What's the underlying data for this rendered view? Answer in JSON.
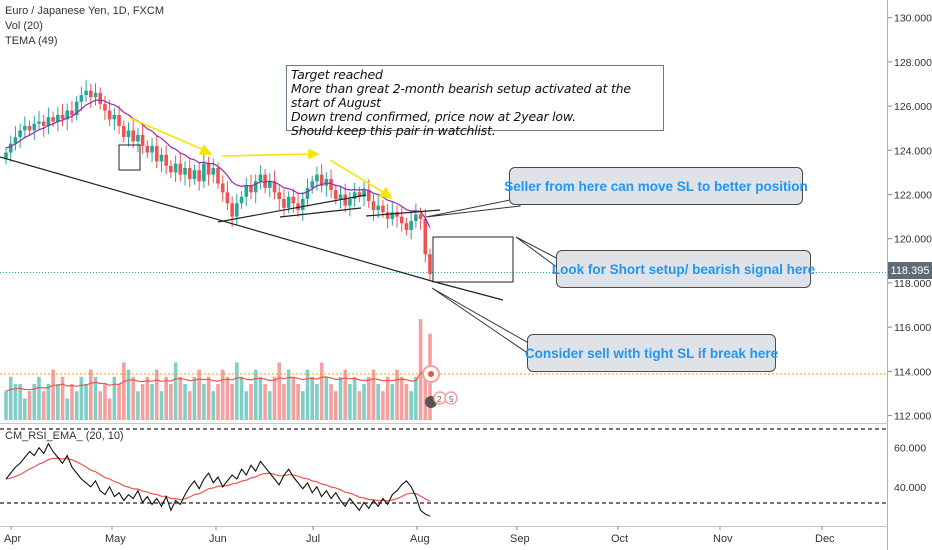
{
  "header": {
    "symbol_line": "Euro / Japanese Yen, 1D, FXCM",
    "volume_legend": "Vol (20)",
    "tema_legend": "TEMA (49)"
  },
  "rsi_panel": {
    "title": "CM_RSI_EMA_ (20, 10)",
    "ticks": [
      "60.000",
      "40.000"
    ]
  },
  "note": {
    "lines": [
      "Target reached",
      "More than great 2-month bearish setup activated at the start of August",
      "Down trend confirmed, price now at 2year low.",
      "Should keep this pair in watchlist."
    ]
  },
  "callouts": {
    "seller": "Seller from here can move SL to better position",
    "short": "Look for Short setup/ bearish signal here",
    "sell": "Consider sell with tight SL if break here"
  },
  "price_tag": "118.395",
  "price_axis_ticks": [
    "130.000",
    "128.000",
    "126.000",
    "124.000",
    "122.000",
    "120.000",
    "118.000",
    "116.000",
    "114.000",
    "112.000"
  ],
  "icons": {
    "marker_digits": "2",
    "marker_digits2": "5"
  },
  "colors": {
    "up": "#26a69a",
    "down": "#ef5350",
    "vol_up": "#7fcfc7",
    "vol_down": "#f4a09e",
    "tema": "#9c27b0",
    "arrow": "#ffeb3b",
    "rsi_line": "#000000",
    "rsi_ema": "#ef5350"
  },
  "chart_data": {
    "type": "candlestick",
    "x_axis": {
      "labels": [
        "Apr",
        "May",
        "Jun",
        "Jul",
        "Aug",
        "Sep",
        "Oct",
        "Nov",
        "Dec"
      ]
    },
    "y_axis": {
      "range": [
        111.8,
        130.8
      ],
      "ticks": [
        112,
        114,
        116,
        118,
        120,
        122,
        124,
        126,
        128,
        130
      ]
    },
    "last_price": 118.395,
    "closes": [
      123.9,
      124.3,
      124.6,
      124.9,
      125.1,
      124.9,
      125.2,
      125.3,
      125.1,
      125.5,
      125.3,
      125.6,
      125.4,
      125.8,
      125.6,
      126.2,
      126.5,
      126.7,
      126.4,
      126.6,
      126.1,
      125.8,
      125.4,
      125.6,
      125.1,
      124.6,
      124.9,
      124.4,
      124.7,
      124.2,
      123.9,
      124.2,
      123.5,
      123.8,
      123.3,
      123.0,
      123.4,
      122.9,
      123.2,
      122.7,
      123.1,
      122.6,
      123.4,
      122.9,
      123.2,
      122.5,
      122.1,
      121.6,
      121.0,
      121.6,
      121.9,
      122.4,
      122.1,
      122.6,
      122.9,
      122.3,
      122.6,
      122.1,
      121.8,
      121.4,
      121.9,
      121.6,
      121.3,
      121.8,
      122.3,
      122.6,
      122.9,
      122.4,
      122.7,
      122.2,
      121.8,
      122.0,
      121.5,
      121.8,
      122.1,
      121.9,
      122.2,
      121.7,
      121.3,
      121.5,
      121.2,
      120.9,
      121.2,
      121.0,
      120.7,
      120.4,
      120.8,
      121.1,
      120.9,
      119.3,
      118.4
    ],
    "volume": [
      4,
      6,
      5,
      5,
      3,
      4,
      5,
      6,
      4,
      5,
      7,
      5,
      6,
      3,
      5,
      4,
      6,
      5,
      7,
      6,
      4,
      5,
      3,
      6,
      5,
      8,
      7,
      6,
      4,
      5,
      6,
      5,
      7,
      4,
      6,
      5,
      8,
      6,
      5,
      4,
      6,
      7,
      5,
      6,
      4,
      5,
      7,
      6,
      5,
      8,
      6,
      4,
      5,
      7,
      6,
      5,
      4,
      6,
      8,
      5,
      7,
      6,
      5,
      4,
      7,
      6,
      5,
      8,
      6,
      5,
      4,
      6,
      7,
      5,
      6,
      4,
      5,
      6,
      7,
      5,
      4,
      6,
      5,
      7,
      6,
      5,
      4,
      6,
      14,
      7,
      12
    ],
    "rsi": [
      44,
      47,
      50,
      52,
      55,
      58,
      56,
      60,
      57,
      62,
      58,
      55,
      52,
      56,
      50,
      47,
      44,
      42,
      40,
      43,
      38,
      36,
      40,
      35,
      37,
      33,
      36,
      34,
      38,
      32,
      35,
      31,
      34,
      30,
      35,
      28,
      33,
      31,
      36,
      40,
      43,
      39,
      44,
      47,
      42,
      45,
      40,
      43,
      46,
      44,
      49,
      46,
      51,
      48,
      53,
      50,
      47,
      44,
      41,
      46,
      49,
      45,
      42,
      39,
      42,
      37,
      40,
      35,
      38,
      34,
      37,
      33,
      30,
      34,
      31,
      28,
      32,
      29,
      33,
      30,
      34,
      31,
      36,
      38,
      41,
      43,
      40,
      35,
      28,
      26,
      25
    ],
    "rsi_ticks": [
      60,
      40
    ],
    "rsi_range": [
      22,
      68
    ]
  }
}
